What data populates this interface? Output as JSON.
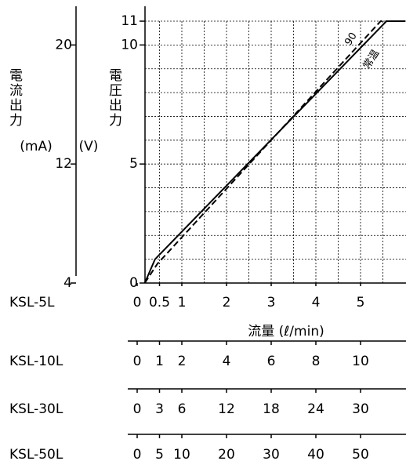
{
  "chart_data": {
    "type": "line",
    "ylabel": "電圧出力",
    "yunit": "(V)",
    "y2label": "電流出力",
    "y2unit": "(mA)",
    "xlabel": "流量 (ℓ/min)",
    "xlim": [
      0,
      6
    ],
    "ylim": [
      0,
      11
    ],
    "y2lim": [
      4,
      21.6
    ],
    "yticks": [
      0,
      5,
      10,
      11
    ],
    "y2ticks": [
      4,
      12,
      20
    ],
    "xticks": [
      0,
      0.5,
      1,
      2,
      3,
      4,
      5
    ],
    "x_grid": [
      0.5,
      1,
      1.5,
      2,
      2.5,
      3,
      3.5,
      4,
      4.5,
      5,
      5.5
    ],
    "y_grid": [
      1,
      2,
      3,
      4,
      5,
      6,
      7,
      8,
      9,
      10,
      11
    ],
    "series": [
      {
        "name": "常温",
        "color": "#000000",
        "dash": false,
        "x": [
          0.17,
          0.4,
          5.58,
          6
        ],
        "values": [
          0,
          1,
          11,
          11
        ]
      },
      {
        "name": "90",
        "color": "#000000",
        "dash": true,
        "x": [
          0.17,
          0.45,
          5.45,
          6
        ],
        "values": [
          0,
          0.8,
          11,
          11
        ]
      }
    ],
    "scales": [
      {
        "name": "KSL-5L",
        "ticks": [
          0,
          0.5,
          1,
          2,
          3,
          4,
          5
        ]
      },
      {
        "name": "KSL-10L",
        "ticks": [
          0,
          1,
          2,
          4,
          6,
          8,
          10
        ]
      },
      {
        "name": "KSL-30L",
        "ticks": [
          0,
          3,
          6,
          12,
          18,
          24,
          30
        ]
      },
      {
        "name": "KSL-50L",
        "ticks": [
          0,
          5,
          10,
          20,
          30,
          40,
          50
        ]
      }
    ]
  }
}
